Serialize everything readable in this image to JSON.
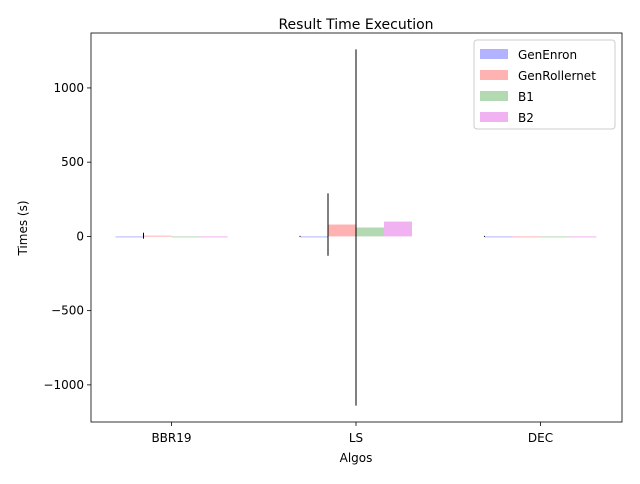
{
  "chart_data": {
    "type": "bar",
    "title": "Result Time Execution",
    "xlabel": "Algos",
    "ylabel": "Times (s)",
    "categories": [
      "BBR19",
      "LS",
      "DEC"
    ],
    "ylim": [
      -1250,
      1370
    ],
    "yticks": [
      -1000,
      -500,
      0,
      500,
      1000
    ],
    "ytick_labels": [
      "−1000",
      "−500",
      "0",
      "500",
      "1000"
    ],
    "grid": false,
    "legend_position": "top-right",
    "series": [
      {
        "name": "GenEnron",
        "color": "#0000ff",
        "alpha": 0.3,
        "values": [
          0,
          0,
          0
        ],
        "err": [
          0,
          0,
          0
        ],
        "err_visible": [
          false,
          true,
          true
        ]
      },
      {
        "name": "GenRollernet",
        "color": "#ff0000",
        "alpha": 0.3,
        "values": [
          5,
          80,
          0
        ],
        "err": [
          20,
          210,
          0
        ],
        "err_visible": [
          true,
          true,
          false
        ]
      },
      {
        "name": "B1",
        "color": "#008000",
        "alpha": 0.3,
        "values": [
          0,
          60,
          0
        ],
        "err": [
          0,
          1200,
          0
        ],
        "err_visible": [
          false,
          true,
          false
        ]
      },
      {
        "name": "B2",
        "color": "#cc00cc",
        "alpha": 0.3,
        "values": [
          0,
          100,
          0
        ],
        "err": [
          0,
          0,
          0
        ],
        "err_visible": [
          false,
          false,
          false
        ]
      }
    ]
  }
}
